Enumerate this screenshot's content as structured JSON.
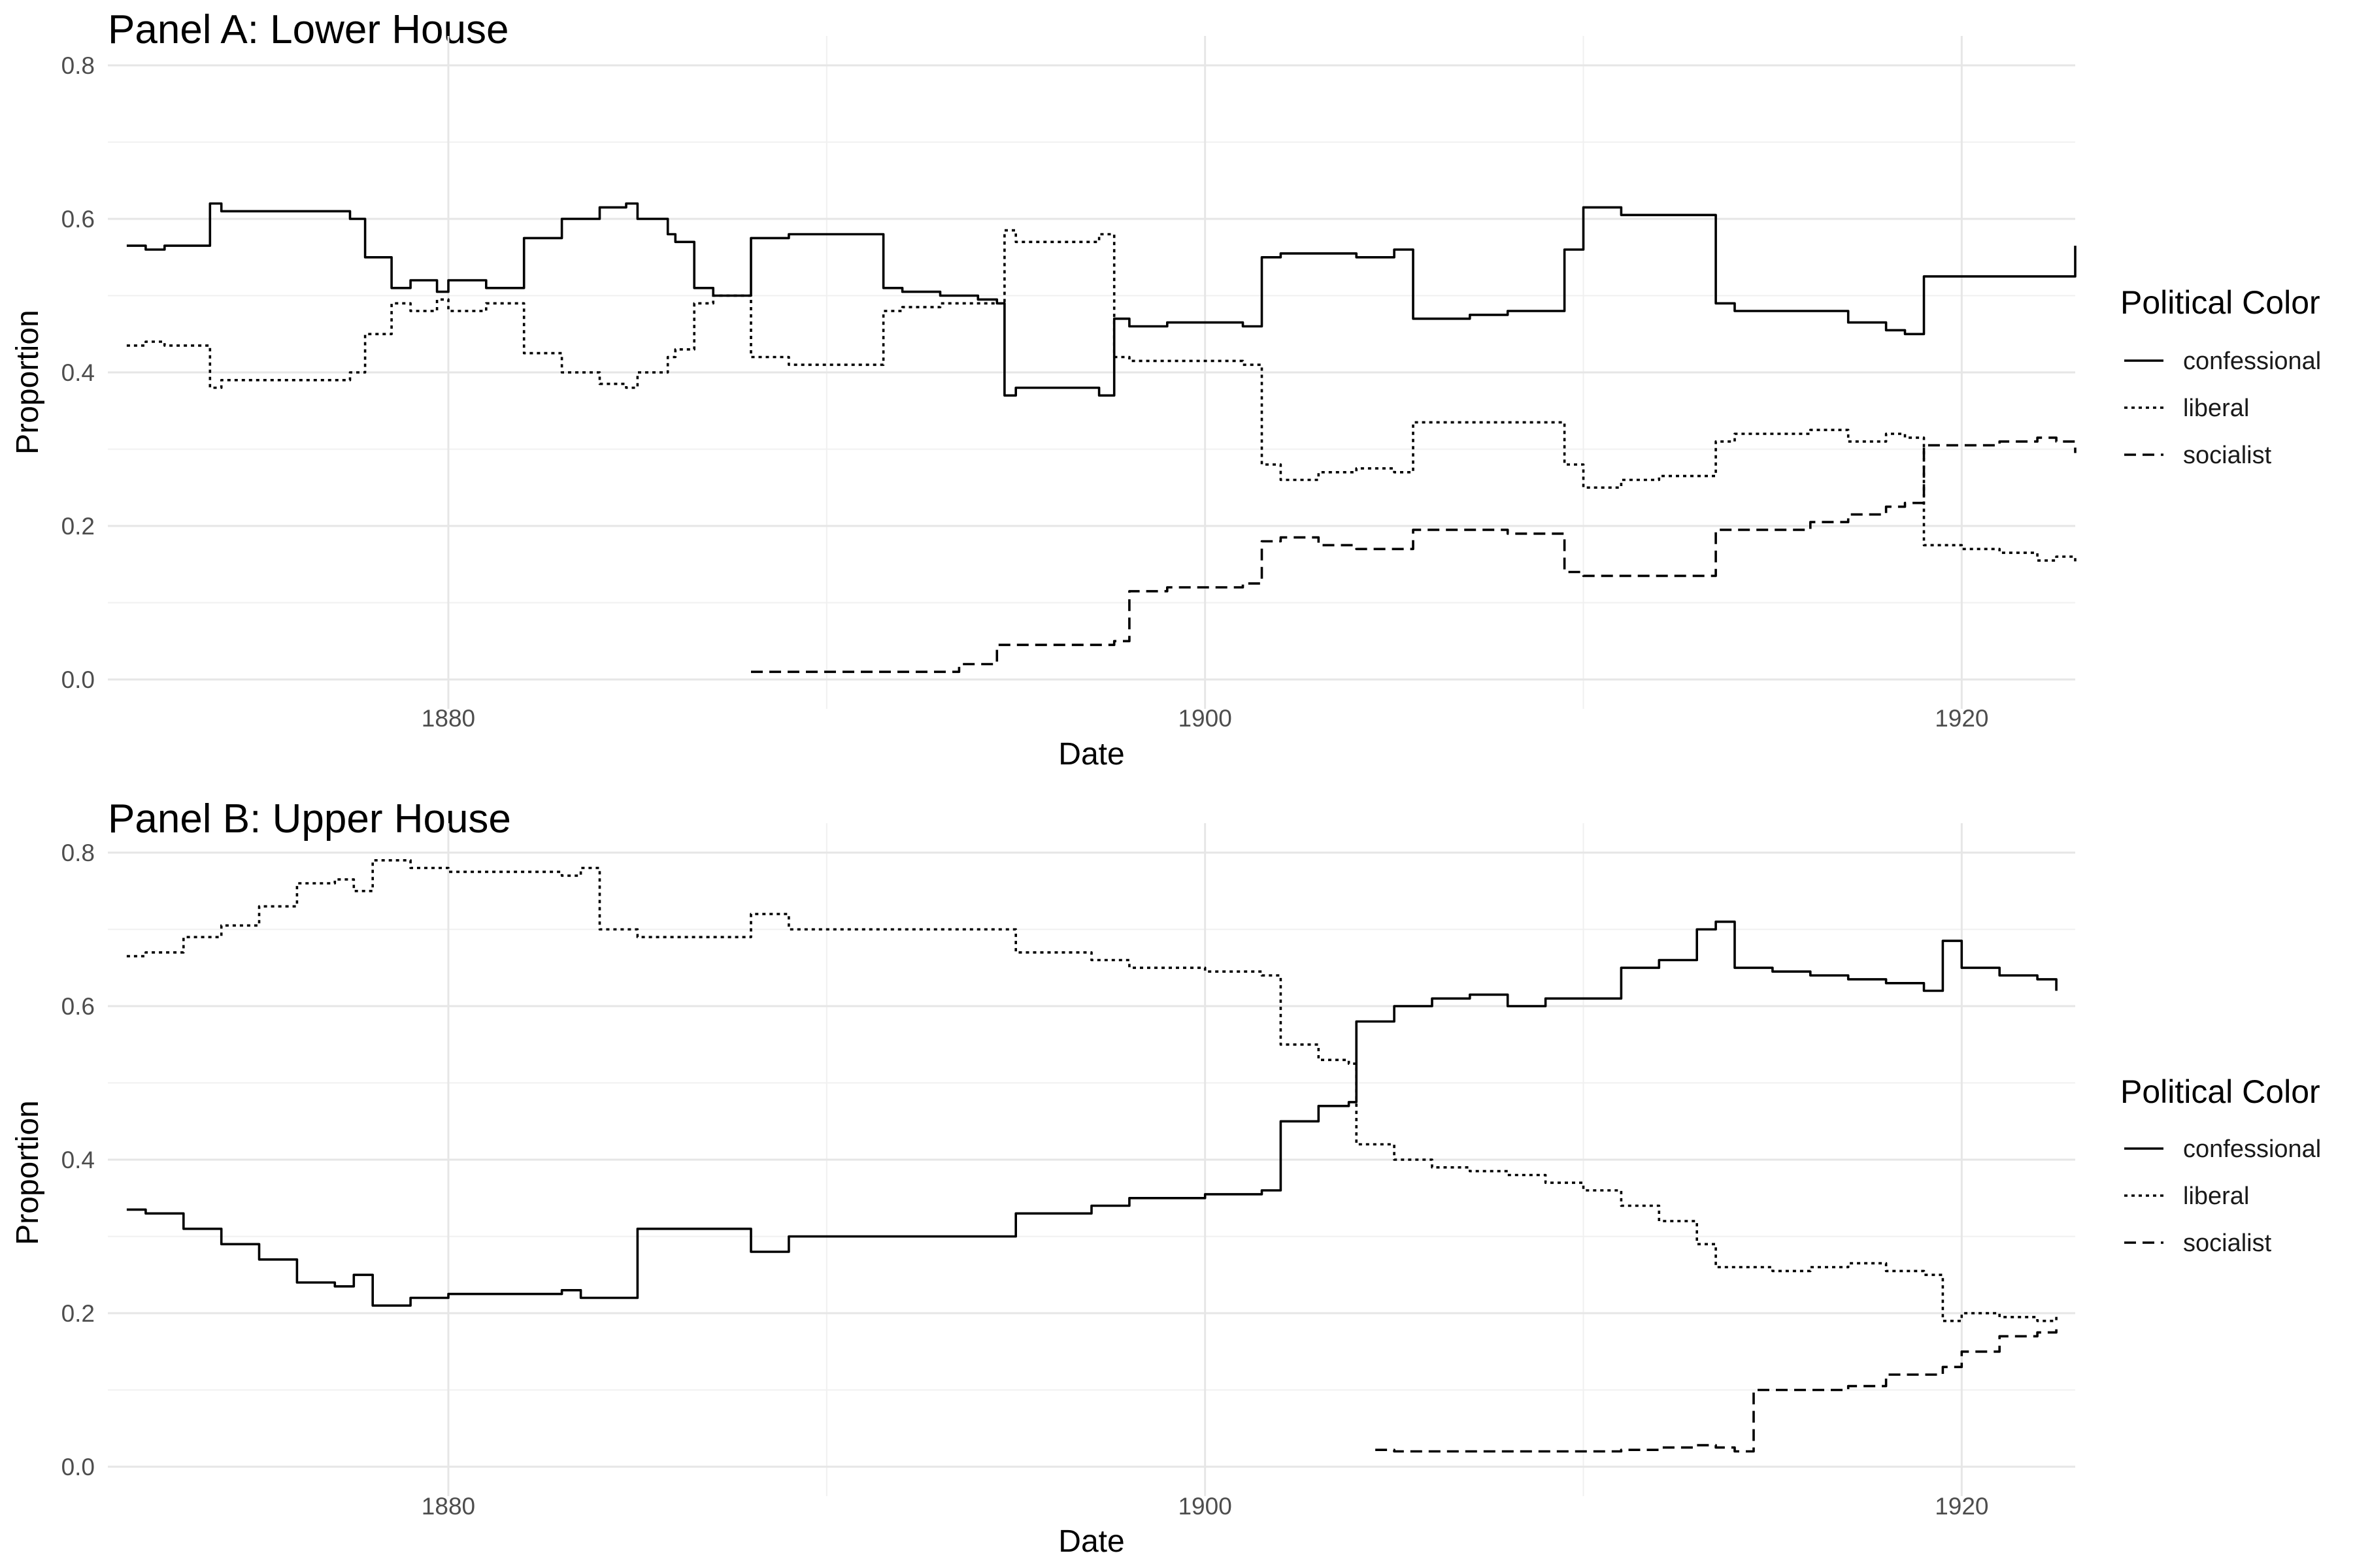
{
  "chart_data": [
    {
      "type": "line",
      "title": "Panel A: Lower House",
      "xlabel": "Date",
      "ylabel": "Proportion",
      "xlim": [
        1871,
        1923
      ],
      "ylim": [
        0,
        0.8
      ],
      "x_ticks": [
        1880,
        1900,
        1920
      ],
      "y_ticks": [
        0.0,
        0.2,
        0.4,
        0.6,
        0.8
      ],
      "grid": true,
      "legend": {
        "title": "Political Color",
        "position": "right",
        "entries": [
          "confessional",
          "liberal",
          "socialist"
        ]
      },
      "series": [
        {
          "name": "confessional",
          "linestyle": "solid",
          "x": [
            1871.5,
            1872.0,
            1872.5,
            1873.0,
            1873.5,
            1873.7,
            1874.0,
            1875.0,
            1876.0,
            1877.0,
            1877.4,
            1877.8,
            1878.5,
            1879.0,
            1879.7,
            1880.0,
            1880.8,
            1881.0,
            1882.0,
            1883.0,
            1884.0,
            1884.7,
            1885.0,
            1885.8,
            1886.0,
            1886.5,
            1887.0,
            1887.5,
            1888.0,
            1889.0,
            1890.0,
            1891.0,
            1891.5,
            1892.0,
            1893.0,
            1894.0,
            1894.5,
            1894.7,
            1895.0,
            1896.0,
            1896.9,
            1897.2,
            1897.6,
            1898.0,
            1899.0,
            1900.0,
            1901.0,
            1901.5,
            1902.0,
            1903.0,
            1904.0,
            1905.0,
            1905.5,
            1906.0,
            1907.0,
            1908.0,
            1909.0,
            1909.5,
            1910.0,
            1911.0,
            1912.0,
            1913.0,
            1913.5,
            1914.0,
            1915.0,
            1916.0,
            1917.0,
            1918.0,
            1918.5,
            1919.0,
            1920.0,
            1921.0,
            1922.0,
            1922.5,
            1923.0
          ],
          "y": [
            0.565,
            0.56,
            0.565,
            0.565,
            0.565,
            0.62,
            0.61,
            0.61,
            0.61,
            0.61,
            0.6,
            0.55,
            0.51,
            0.52,
            0.505,
            0.52,
            0.52,
            0.51,
            0.575,
            0.6,
            0.615,
            0.62,
            0.6,
            0.58,
            0.57,
            0.51,
            0.5,
            0.5,
            0.575,
            0.58,
            0.58,
            0.58,
            0.51,
            0.505,
            0.5,
            0.495,
            0.49,
            0.37,
            0.38,
            0.38,
            0.38,
            0.37,
            0.47,
            0.46,
            0.465,
            0.465,
            0.46,
            0.55,
            0.555,
            0.555,
            0.55,
            0.56,
            0.47,
            0.47,
            0.475,
            0.48,
            0.48,
            0.56,
            0.615,
            0.605,
            0.605,
            0.605,
            0.49,
            0.48,
            0.48,
            0.48,
            0.465,
            0.455,
            0.45,
            0.525,
            0.525,
            0.525,
            0.525,
            0.525,
            0.565
          ]
        },
        {
          "name": "liberal",
          "linestyle": "dotted",
          "x": [
            1871.5,
            1872.0,
            1872.5,
            1873.0,
            1873.5,
            1873.7,
            1874.0,
            1875.0,
            1876.0,
            1877.0,
            1877.4,
            1877.8,
            1878.5,
            1879.0,
            1879.7,
            1880.0,
            1880.8,
            1881.0,
            1882.0,
            1883.0,
            1884.0,
            1884.7,
            1885.0,
            1885.8,
            1886.0,
            1886.5,
            1887.0,
            1887.5,
            1888.0,
            1889.0,
            1890.0,
            1891.0,
            1891.5,
            1892.0,
            1893.0,
            1894.0,
            1894.5,
            1894.7,
            1895.0,
            1896.0,
            1896.9,
            1897.2,
            1897.6,
            1898.0,
            1899.0,
            1900.0,
            1901.0,
            1901.5,
            1902.0,
            1903.0,
            1904.0,
            1905.0,
            1905.5,
            1906.0,
            1907.0,
            1908.0,
            1909.0,
            1909.5,
            1910.0,
            1911.0,
            1912.0,
            1913.0,
            1913.5,
            1914.0,
            1915.0,
            1916.0,
            1917.0,
            1918.0,
            1918.5,
            1919.0,
            1920.0,
            1921.0,
            1922.0,
            1922.5,
            1923.0
          ],
          "y": [
            0.435,
            0.44,
            0.435,
            0.435,
            0.435,
            0.38,
            0.39,
            0.39,
            0.39,
            0.39,
            0.4,
            0.45,
            0.49,
            0.48,
            0.495,
            0.48,
            0.48,
            0.49,
            0.425,
            0.4,
            0.385,
            0.38,
            0.4,
            0.42,
            0.43,
            0.49,
            0.5,
            0.5,
            0.42,
            0.41,
            0.41,
            0.41,
            0.48,
            0.485,
            0.49,
            0.49,
            0.49,
            0.585,
            0.57,
            0.57,
            0.57,
            0.58,
            0.42,
            0.415,
            0.415,
            0.415,
            0.41,
            0.28,
            0.26,
            0.27,
            0.275,
            0.27,
            0.335,
            0.335,
            0.335,
            0.335,
            0.335,
            0.28,
            0.25,
            0.26,
            0.265,
            0.265,
            0.31,
            0.32,
            0.32,
            0.325,
            0.31,
            0.32,
            0.315,
            0.175,
            0.17,
            0.165,
            0.155,
            0.16,
            0.15
          ]
        },
        {
          "name": "socialist",
          "linestyle": "dashed",
          "x": [
            1888.0,
            1889.0,
            1890.0,
            1891.0,
            1892.0,
            1893.0,
            1893.5,
            1894.0,
            1894.5,
            1895.0,
            1896.0,
            1897.0,
            1897.6,
            1898.0,
            1899.0,
            1900.0,
            1901.0,
            1901.5,
            1902.0,
            1903.0,
            1904.0,
            1905.0,
            1905.5,
            1906.0,
            1907.0,
            1908.0,
            1909.0,
            1909.5,
            1910.0,
            1911.0,
            1912.0,
            1913.0,
            1913.5,
            1914.0,
            1915.0,
            1916.0,
            1917.0,
            1918.0,
            1918.5,
            1919.0,
            1920.0,
            1921.0,
            1922.0,
            1922.5,
            1923.0
          ],
          "y": [
            0.01,
            0.01,
            0.01,
            0.01,
            0.01,
            0.01,
            0.02,
            0.02,
            0.045,
            0.045,
            0.045,
            0.045,
            0.05,
            0.115,
            0.12,
            0.12,
            0.125,
            0.18,
            0.185,
            0.175,
            0.17,
            0.17,
            0.195,
            0.195,
            0.195,
            0.19,
            0.19,
            0.14,
            0.135,
            0.135,
            0.135,
            0.135,
            0.195,
            0.195,
            0.195,
            0.205,
            0.215,
            0.225,
            0.23,
            0.305,
            0.305,
            0.31,
            0.315,
            0.31,
            0.295
          ]
        }
      ]
    },
    {
      "type": "line",
      "title": "Panel B: Upper House",
      "xlabel": "Date",
      "ylabel": "Proportion",
      "xlim": [
        1871,
        1923
      ],
      "ylim": [
        0,
        0.8
      ],
      "x_ticks": [
        1880,
        1900,
        1920
      ],
      "y_ticks": [
        0.0,
        0.2,
        0.4,
        0.6,
        0.8
      ],
      "grid": true,
      "legend": {
        "title": "Political Color",
        "position": "right",
        "entries": [
          "confessional",
          "liberal",
          "socialist"
        ]
      },
      "series": [
        {
          "name": "confessional",
          "linestyle": "solid",
          "x": [
            1871.5,
            1872.0,
            1873.0,
            1874.0,
            1875.0,
            1876.0,
            1877.0,
            1877.5,
            1878.0,
            1879.0,
            1880.0,
            1881.0,
            1882.0,
            1883.0,
            1883.5,
            1884.0,
            1885.0,
            1886.0,
            1887.0,
            1888.0,
            1889.0,
            1890.0,
            1891.0,
            1892.0,
            1893.0,
            1894.0,
            1894.5,
            1895.0,
            1896.0,
            1897.0,
            1898.0,
            1899.0,
            1900.0,
            1901.0,
            1901.5,
            1902.0,
            1903.0,
            1903.8,
            1904.0,
            1905.0,
            1906.0,
            1907.0,
            1908.0,
            1909.0,
            1910.0,
            1911.0,
            1912.0,
            1913.0,
            1913.5,
            1914.0,
            1915.0,
            1916.0,
            1917.0,
            1918.0,
            1919.0,
            1919.5,
            1920.0,
            1921.0,
            1922.0,
            1922.5
          ],
          "y": [
            0.335,
            0.33,
            0.31,
            0.29,
            0.27,
            0.24,
            0.235,
            0.25,
            0.21,
            0.22,
            0.225,
            0.225,
            0.225,
            0.23,
            0.22,
            0.22,
            0.31,
            0.31,
            0.31,
            0.28,
            0.3,
            0.3,
            0.3,
            0.3,
            0.3,
            0.3,
            0.3,
            0.33,
            0.33,
            0.34,
            0.35,
            0.35,
            0.355,
            0.355,
            0.36,
            0.45,
            0.47,
            0.475,
            0.58,
            0.6,
            0.61,
            0.615,
            0.6,
            0.61,
            0.61,
            0.65,
            0.66,
            0.7,
            0.71,
            0.65,
            0.645,
            0.64,
            0.635,
            0.63,
            0.62,
            0.685,
            0.65,
            0.64,
            0.635,
            0.62
          ]
        },
        {
          "name": "liberal",
          "linestyle": "dotted",
          "x": [
            1871.5,
            1872.0,
            1873.0,
            1874.0,
            1875.0,
            1876.0,
            1877.0,
            1877.5,
            1878.0,
            1879.0,
            1880.0,
            1881.0,
            1882.0,
            1883.0,
            1883.5,
            1884.0,
            1885.0,
            1886.0,
            1887.0,
            1888.0,
            1889.0,
            1890.0,
            1891.0,
            1892.0,
            1893.0,
            1894.0,
            1894.5,
            1895.0,
            1896.0,
            1897.0,
            1898.0,
            1899.0,
            1900.0,
            1901.0,
            1901.5,
            1902.0,
            1903.0,
            1903.8,
            1904.0,
            1905.0,
            1906.0,
            1907.0,
            1908.0,
            1909.0,
            1910.0,
            1911.0,
            1912.0,
            1913.0,
            1913.5,
            1914.0,
            1915.0,
            1916.0,
            1917.0,
            1918.0,
            1919.0,
            1919.5,
            1920.0,
            1921.0,
            1922.0,
            1922.5
          ],
          "y": [
            0.665,
            0.67,
            0.69,
            0.705,
            0.73,
            0.76,
            0.765,
            0.75,
            0.79,
            0.78,
            0.775,
            0.775,
            0.775,
            0.77,
            0.78,
            0.7,
            0.69,
            0.69,
            0.69,
            0.72,
            0.7,
            0.7,
            0.7,
            0.7,
            0.7,
            0.7,
            0.7,
            0.67,
            0.67,
            0.66,
            0.65,
            0.65,
            0.645,
            0.645,
            0.64,
            0.55,
            0.53,
            0.525,
            0.42,
            0.4,
            0.39,
            0.385,
            0.38,
            0.37,
            0.36,
            0.34,
            0.32,
            0.29,
            0.26,
            0.26,
            0.255,
            0.26,
            0.265,
            0.255,
            0.25,
            0.19,
            0.2,
            0.195,
            0.19,
            0.2
          ]
        },
        {
          "name": "socialist",
          "linestyle": "dashed",
          "x": [
            1904.5,
            1905.0,
            1906.0,
            1907.0,
            1908.0,
            1909.0,
            1910.0,
            1911.0,
            1912.0,
            1913.0,
            1913.5,
            1914.0,
            1914.5,
            1915.0,
            1916.0,
            1917.0,
            1918.0,
            1919.0,
            1919.5,
            1920.0,
            1921.0,
            1922.0,
            1922.5
          ],
          "y": [
            0.022,
            0.02,
            0.02,
            0.02,
            0.02,
            0.02,
            0.02,
            0.022,
            0.025,
            0.028,
            0.025,
            0.02,
            0.1,
            0.1,
            0.1,
            0.105,
            0.12,
            0.12,
            0.13,
            0.15,
            0.17,
            0.175,
            0.185
          ]
        }
      ]
    }
  ]
}
